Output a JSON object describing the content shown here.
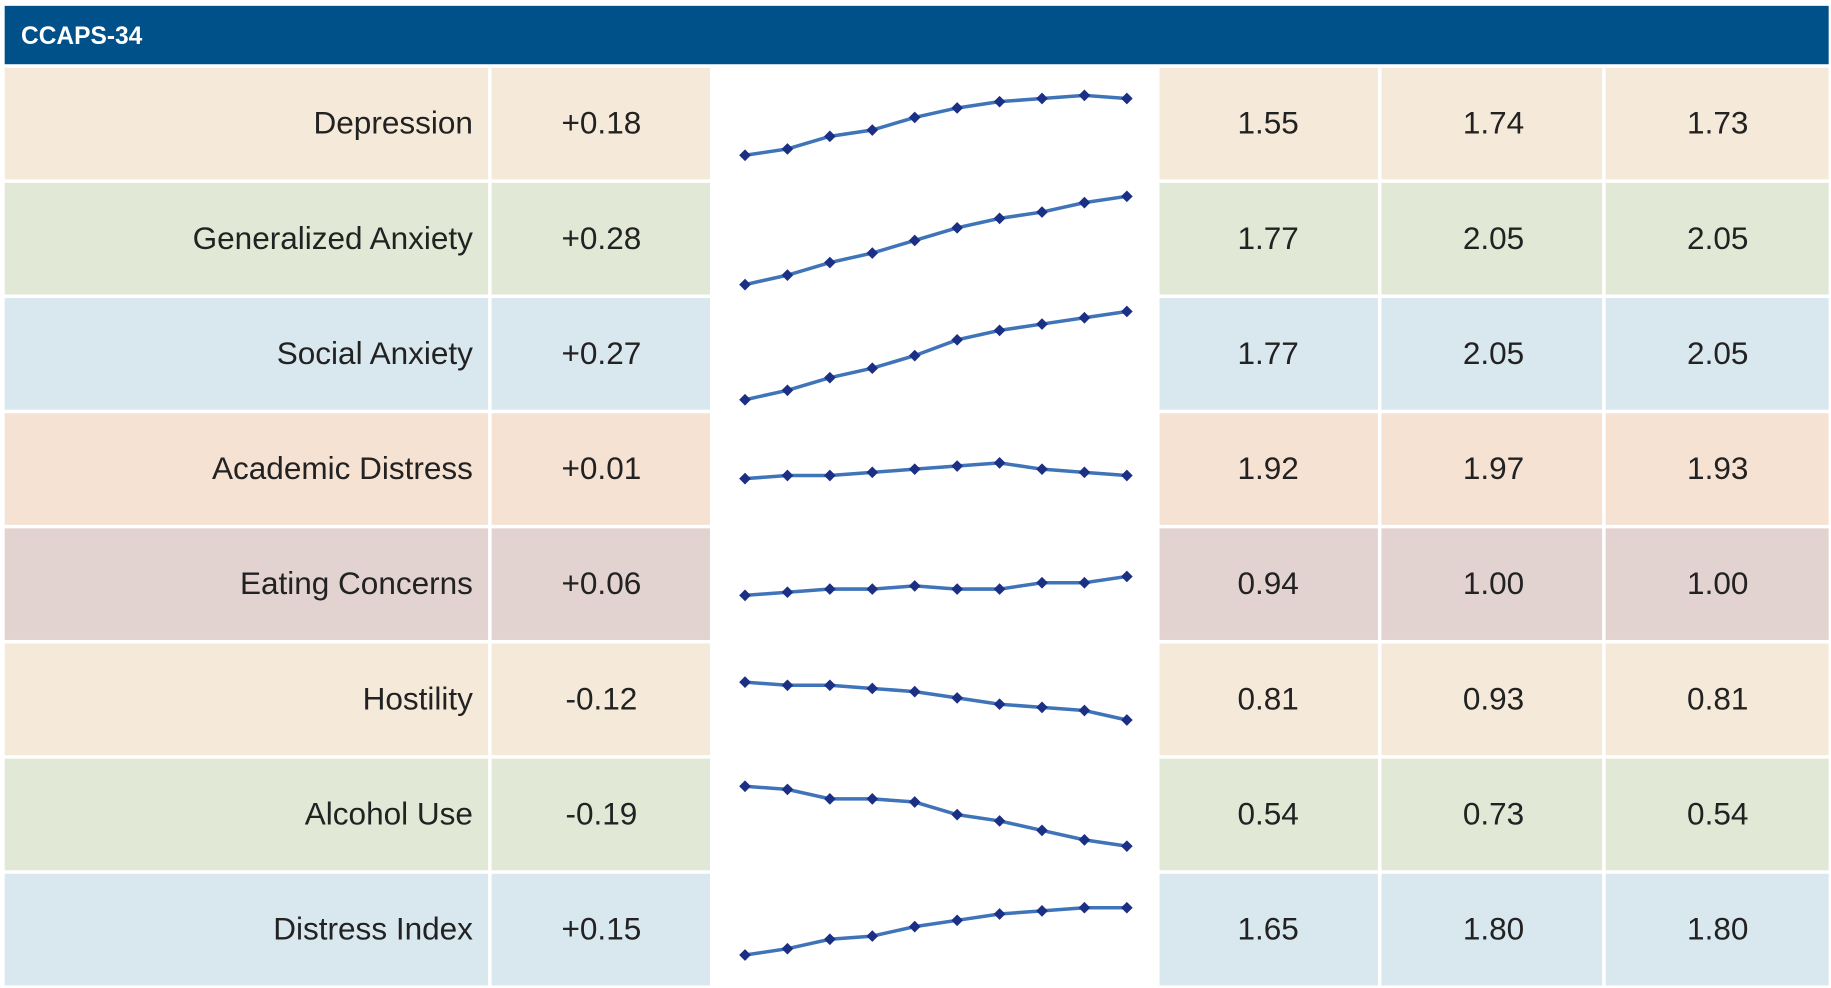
{
  "title": "CCAPS-34",
  "rows": [
    {
      "label": "Depression",
      "change": "+0.18",
      "trend": [
        1.55,
        1.57,
        1.61,
        1.63,
        1.67,
        1.7,
        1.72,
        1.73,
        1.74,
        1.73
      ],
      "values": [
        "1.55",
        "1.74",
        "1.73"
      ]
    },
    {
      "label": "Generalized Anxiety",
      "change": "+0.28",
      "trend": [
        1.77,
        1.8,
        1.84,
        1.87,
        1.91,
        1.95,
        1.98,
        2.0,
        2.03,
        2.05
      ],
      "values": [
        "1.77",
        "2.05",
        "2.05"
      ]
    },
    {
      "label": "Social Anxiety",
      "change": "+0.27",
      "trend": [
        1.77,
        1.8,
        1.84,
        1.87,
        1.91,
        1.96,
        1.99,
        2.01,
        2.03,
        2.05
      ],
      "values": [
        "1.77",
        "2.05",
        "2.05"
      ]
    },
    {
      "label": "Academic Distress",
      "change": "+0.01",
      "trend": [
        1.92,
        1.93,
        1.93,
        1.94,
        1.95,
        1.96,
        1.97,
        1.95,
        1.94,
        1.93
      ],
      "values": [
        "1.92",
        "1.97",
        "1.93"
      ]
    },
    {
      "label": "Eating Concerns",
      "change": "+0.06",
      "trend": [
        0.94,
        0.95,
        0.96,
        0.96,
        0.97,
        0.96,
        0.96,
        0.98,
        0.98,
        1.0
      ],
      "values": [
        "0.94",
        "1.00",
        "1.00"
      ]
    },
    {
      "label": "Hostility",
      "change": "-0.12",
      "trend": [
        0.93,
        0.92,
        0.92,
        0.91,
        0.9,
        0.88,
        0.86,
        0.85,
        0.84,
        0.81
      ],
      "values": [
        "0.81",
        "0.93",
        "0.81"
      ]
    },
    {
      "label": "Alcohol Use",
      "change": "-0.19",
      "trend": [
        0.73,
        0.72,
        0.69,
        0.69,
        0.68,
        0.64,
        0.62,
        0.59,
        0.56,
        0.54
      ],
      "values": [
        "0.54",
        "0.73",
        "0.54"
      ]
    },
    {
      "label": "Distress Index",
      "change": "+0.15",
      "trend": [
        1.65,
        1.67,
        1.7,
        1.71,
        1.74,
        1.76,
        1.78,
        1.79,
        1.8,
        1.8
      ],
      "values": [
        "1.65",
        "1.80",
        "1.80"
      ]
    }
  ]
}
